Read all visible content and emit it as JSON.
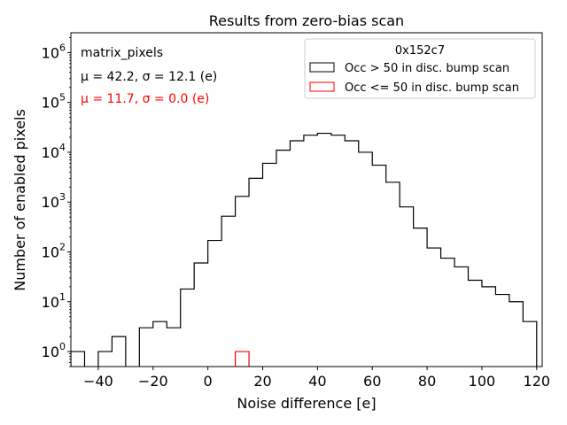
{
  "chart_data": {
    "type": "histogram",
    "title": "Results from zero-bias scan",
    "xlabel": "Noise difference [e]",
    "ylabel": "Number of enabled pixels",
    "yscale": "log",
    "xlim": [
      -50,
      122
    ],
    "ylim": [
      0.5,
      2500000
    ],
    "xticks": [
      -40,
      -20,
      0,
      20,
      40,
      60,
      80,
      100,
      120
    ],
    "xtick_labels": [
      "−40",
      "−20",
      "0",
      "20",
      "40",
      "60",
      "80",
      "100",
      "120"
    ],
    "yticks": [
      {
        "value": 1,
        "base": "10",
        "exp": "0"
      },
      {
        "value": 10,
        "base": "10",
        "exp": "1"
      },
      {
        "value": 100,
        "base": "10",
        "exp": "2"
      },
      {
        "value": 1000,
        "base": "10",
        "exp": "3"
      },
      {
        "value": 10000,
        "base": "10",
        "exp": "4"
      },
      {
        "value": 100000,
        "base": "10",
        "exp": "5"
      },
      {
        "value": 1000000,
        "base": "10",
        "exp": "6"
      }
    ],
    "bin_edges": [
      -50,
      -45,
      -40,
      -35,
      -30,
      -25,
      -20,
      -15,
      -10,
      -5,
      0,
      5,
      10,
      15,
      20,
      25,
      30,
      35,
      40,
      45,
      50,
      55,
      60,
      65,
      70,
      75,
      80,
      85,
      90,
      95,
      100,
      105,
      110,
      115,
      120
    ],
    "series": [
      {
        "name": "Occ > 50 in disc. bump scan",
        "color": "#000000",
        "counts": [
          1,
          0,
          1,
          2,
          0,
          3,
          4,
          3,
          18,
          60,
          170,
          520,
          1300,
          3000,
          6000,
          11000,
          17000,
          22000,
          24000,
          22000,
          17000,
          10000,
          5500,
          2500,
          800,
          300,
          120,
          75,
          50,
          27,
          20,
          14,
          10,
          4
        ]
      },
      {
        "name": "Occ <= 50 in disc. bump scan",
        "color": "#ff0000",
        "counts": [
          0,
          0,
          0,
          0,
          0,
          0,
          0,
          0,
          0,
          0,
          0,
          0,
          1,
          0,
          0,
          0,
          0,
          0,
          0,
          0,
          0,
          0,
          0,
          0,
          0,
          0,
          0,
          0,
          0,
          0,
          0,
          0,
          0,
          0
        ]
      }
    ],
    "legend": {
      "title": "0x152c7",
      "position": "top-right"
    },
    "annotations": {
      "name": "matrix_pixels",
      "stats_black": "μ = 42.2, σ = 12.1 (e)",
      "stats_red": "μ = 11.7, σ = 0.0 (e)"
    }
  },
  "colors": {
    "series_black": "#000000",
    "series_red": "#ff0000",
    "legend_border": "#cccccc"
  }
}
